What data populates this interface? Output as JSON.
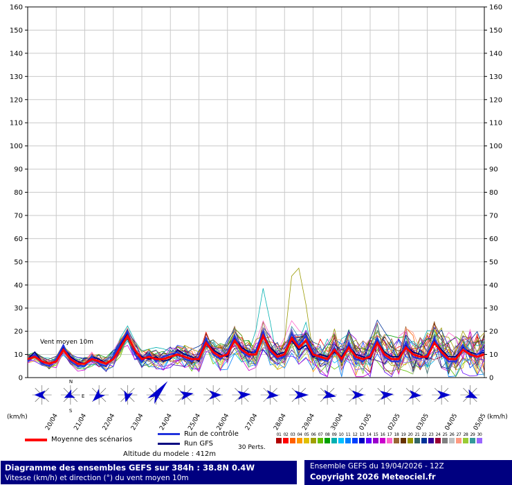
{
  "chart_data": {
    "type": "line",
    "unit": "(km/h)",
    "annotation": "Vent moyen 10m",
    "ylim": [
      0,
      160
    ],
    "ytick_step": 10,
    "grid": true,
    "x_dates": [
      "20/04",
      "21/04",
      "22/04",
      "23/04",
      "24/04",
      "25/04",
      "26/04",
      "27/04",
      "28/04",
      "29/04",
      "30/04",
      "01/05",
      "02/05",
      "03/05",
      "04/05",
      "05/05"
    ],
    "steps_per_day": 4,
    "series": [
      {
        "name": "Moyenne des scénarios",
        "color": "#ff0000",
        "width": 3,
        "values": [
          8,
          9,
          7,
          6,
          7,
          12,
          8,
          6,
          6,
          8,
          7,
          6,
          8,
          13,
          18,
          12,
          8,
          9,
          8,
          8,
          9,
          10,
          9,
          8,
          8,
          15,
          11,
          9,
          10,
          16,
          12,
          10,
          10,
          18,
          12,
          9,
          10,
          17,
          13,
          16,
          10,
          9,
          8,
          12,
          8,
          13,
          9,
          8,
          9,
          15,
          10,
          8,
          8,
          13,
          10,
          9,
          9,
          15,
          11,
          8,
          8,
          12,
          10,
          9,
          10
        ]
      },
      {
        "name": "Run de contrôle",
        "color": "#2233dd",
        "width": 2.2,
        "values": [
          7,
          10,
          6,
          5,
          8,
          14,
          7,
          5,
          5,
          9,
          6,
          5,
          9,
          15,
          20,
          10,
          7,
          10,
          7,
          9,
          10,
          11,
          8,
          7,
          9,
          17,
          10,
          8,
          11,
          18,
          11,
          9,
          12,
          20,
          11,
          8,
          9,
          19,
          14,
          18,
          11,
          8,
          7,
          13,
          7,
          15,
          8,
          7,
          10,
          17,
          9,
          7,
          7,
          15,
          9,
          8,
          10,
          17,
          10,
          7,
          7,
          14,
          9,
          10,
          12
        ]
      },
      {
        "name": "Run GFS",
        "color": "#000080",
        "width": 1.8,
        "values": [
          8,
          11,
          7,
          6,
          7,
          13,
          9,
          7,
          6,
          9,
          8,
          6,
          8,
          14,
          19,
          11,
          9,
          8,
          9,
          7,
          8,
          12,
          10,
          9,
          7,
          16,
          12,
          10,
          9,
          17,
          13,
          11,
          11,
          19,
          13,
          10,
          11,
          16,
          12,
          14,
          9,
          10,
          9,
          11,
          9,
          14,
          10,
          9,
          8,
          16,
          11,
          9,
          9,
          14,
          11,
          10,
          8,
          16,
          12,
          9,
          9,
          13,
          11,
          10,
          11
        ]
      }
    ],
    "members": {
      "count": 30,
      "seed": 1234567,
      "spread_start": 1.2,
      "spread_end": 8.5,
      "spikes": [
        {
          "member": 19,
          "start": 36,
          "add": [
            6,
            20,
            27,
            10
          ]
        },
        {
          "member": 8,
          "start": 32,
          "add": [
            5,
            14,
            8,
            0
          ]
        }
      ],
      "palette": [
        "#b00000",
        "#ff0000",
        "#ff6000",
        "#ff9900",
        "#e0c000",
        "#a0a000",
        "#60c000",
        "#00a000",
        "#00b0b0",
        "#00c0ff",
        "#0080ff",
        "#0040ff",
        "#0000c0",
        "#6000ff",
        "#9900cc",
        "#cc00cc",
        "#ff66cc",
        "#996633",
        "#663300",
        "#999900",
        "#336666",
        "#003399",
        "#330099",
        "#990033",
        "#808080",
        "#c0c0c0",
        "#ff9980",
        "#99cc33",
        "#339999",
        "#9966ff"
      ]
    },
    "wind_arrows": {
      "color": "#0000cc",
      "directions_deg": [
        270,
        245,
        225,
        195,
        40,
        80,
        90,
        85,
        95,
        90,
        100,
        90,
        85,
        95,
        90,
        115
      ],
      "lengths": [
        22,
        20,
        26,
        22,
        52,
        26,
        24,
        26,
        24,
        28,
        26,
        24,
        26,
        24,
        26,
        24
      ]
    },
    "compass": [
      "N",
      "E",
      "S"
    ]
  },
  "legend": {
    "mean_label": "Moyenne des scénarios",
    "control_label": "Run de contrôle",
    "gfs_label": "Run GFS",
    "perts_label": "30 Perts.",
    "perts_numbers": [
      "01",
      "02",
      "03",
      "04",
      "05",
      "06",
      "07",
      "08",
      "09",
      "10",
      "11",
      "12",
      "13",
      "14",
      "15",
      "16",
      "17",
      "18",
      "19",
      "20",
      "21",
      "22",
      "23",
      "24",
      "25",
      "26",
      "27",
      "28",
      "29",
      "30"
    ]
  },
  "footer": {
    "altitude": "Altitude du modele : 412m",
    "left_line1": "Diagramme des ensembles GEFS sur 384h : 38.8N 0.4W",
    "left_line2": "Vitesse (km/h) et direction (°) du vent moyen 10m",
    "right_line1": "Ensemble GEFS du 19/04/2026 - 12Z",
    "right_line2": "Copyright 2026 Meteociel.fr"
  },
  "colors": {
    "footer_bg": "#000080",
    "grid": "#c9c9c9",
    "axis": "#000000"
  }
}
